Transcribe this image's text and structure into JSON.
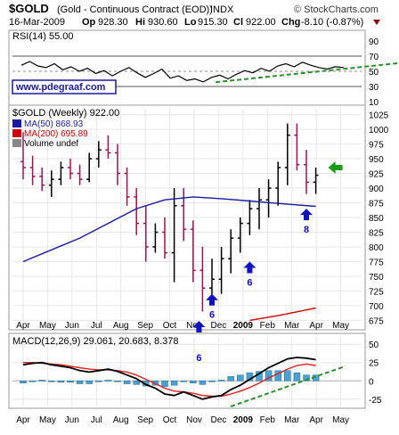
{
  "header": {
    "symbol": "$GOLD",
    "name": "(Gold - Continuous Contract (EOD))",
    "exchange": "INDX",
    "date": "16-Mar-2009",
    "open_label": "Op",
    "open": "928.30",
    "high_label": "Hi",
    "high": "930.60",
    "low_label": "Lo",
    "low": "915.30",
    "close_label": "Cl",
    "close": "922.00",
    "change_label": "Chg",
    "change": "-8.10 (-0.87%)",
    "change_color": "#8b0000",
    "brand": "© StockCharts.com",
    "watermark": "www.pdegraaf.com"
  },
  "chart_data": [
    {
      "type": "line",
      "panel": "rsi",
      "title": "RSI(14) 55.00",
      "series": [
        {
          "name": "RSI(14)",
          "color": "#000000",
          "values": [
            58,
            63,
            57,
            55,
            60,
            52,
            56,
            50,
            54,
            47,
            51,
            44,
            50,
            55,
            48,
            42,
            47,
            53,
            41,
            44,
            38,
            40,
            36,
            42,
            45,
            40,
            46,
            51,
            48,
            54,
            50,
            57,
            60,
            56,
            62,
            58,
            55,
            53,
            56,
            55
          ]
        }
      ],
      "ylim": [
        10,
        90
      ],
      "yticks": [
        10,
        30,
        50,
        70,
        90
      ],
      "overbought": 70,
      "oversold": 30,
      "trendline": {
        "color": "#2e8b2e",
        "style": "dashed",
        "from": [
          24,
          38
        ],
        "to": [
          48,
          60
        ]
      }
    },
    {
      "type": "ohlc",
      "panel": "price",
      "title": "$GOLD (Weekly) 922.00",
      "legend": [
        "$GOLD (Weekly) 922.00",
        "MA(50) 868.93",
        "MA(200) 695.89",
        "Volume undef"
      ],
      "x_labels": [
        "Apr",
        "May",
        "Jun",
        "Jul",
        "Aug",
        "Sep",
        "Oct",
        "Nov",
        "Dec",
        "2009",
        "Feb",
        "Mar",
        "Apr",
        "May"
      ],
      "ylim": [
        665,
        1035
      ],
      "yticks": [
        675,
        700,
        725,
        750,
        775,
        800,
        825,
        850,
        875,
        900,
        925,
        950,
        975,
        1000,
        1025
      ],
      "bars": [
        [
          945,
          995,
          915,
          935
        ],
        [
          935,
          955,
          905,
          920
        ],
        [
          920,
          935,
          895,
          905
        ],
        [
          905,
          930,
          885,
          915
        ],
        [
          915,
          945,
          905,
          935
        ],
        [
          935,
          950,
          915,
          925
        ],
        [
          925,
          940,
          905,
          915
        ],
        [
          915,
          960,
          910,
          950
        ],
        [
          950,
          980,
          935,
          965
        ],
        [
          965,
          990,
          950,
          960
        ],
        [
          960,
          975,
          905,
          925
        ],
        [
          925,
          935,
          870,
          885
        ],
        [
          885,
          900,
          820,
          840
        ],
        [
          840,
          870,
          775,
          800
        ],
        [
          800,
          840,
          790,
          825
        ],
        [
          825,
          850,
          780,
          790
        ],
        [
          790,
          900,
          740,
          870
        ],
        [
          870,
          900,
          810,
          830
        ],
        [
          830,
          845,
          740,
          760
        ],
        [
          760,
          800,
          690,
          730
        ],
        [
          730,
          780,
          705,
          745
        ],
        [
          745,
          800,
          720,
          780
        ],
        [
          780,
          830,
          755,
          815
        ],
        [
          815,
          850,
          790,
          840
        ],
        [
          840,
          880,
          820,
          865
        ],
        [
          865,
          900,
          830,
          880
        ],
        [
          880,
          915,
          850,
          900
        ],
        [
          900,
          945,
          870,
          935
        ],
        [
          935,
          1010,
          905,
          990
        ],
        [
          990,
          1010,
          930,
          940
        ],
        [
          940,
          965,
          890,
          910
        ],
        [
          910,
          935,
          890,
          922
        ]
      ],
      "bar_color_up": "#000000",
      "bar_color_down": "#a01050",
      "ma50": {
        "name": "MA(50) 868.93",
        "color": "#1a1aa0",
        "values": [
          [
            0,
            775
          ],
          [
            3,
            795
          ],
          [
            6,
            815
          ],
          [
            9,
            840
          ],
          [
            12,
            865
          ],
          [
            15,
            880
          ],
          [
            18,
            885
          ],
          [
            21,
            882
          ],
          [
            24,
            878
          ],
          [
            27,
            874
          ],
          [
            31,
            869
          ]
        ]
      },
      "ma200": {
        "name": "MA(200) 695.89",
        "color": "#cc0000",
        "values": [
          [
            24,
            675
          ],
          [
            27,
            683
          ],
          [
            31,
            696
          ]
        ]
      },
      "annotations": [
        {
          "text": "6",
          "bar": 20,
          "price": 720,
          "arrow": "up",
          "color": "#1010c0"
        },
        {
          "text": "6",
          "bar": 24,
          "price": 775,
          "arrow": "up",
          "color": "#1010c0"
        },
        {
          "text": "8",
          "bar": 30,
          "price": 865,
          "arrow": "up",
          "color": "#1010c0"
        },
        {
          "text": "",
          "bar": 32,
          "price": 935,
          "arrow": "left",
          "color": "#1a9a1a"
        }
      ]
    },
    {
      "type": "line",
      "panel": "macd",
      "title": "MACD(12,26,9) 29.061, 20.683, 8.378",
      "series": [
        {
          "name": "MACD(12,26,9) 29.061",
          "color": "#000000",
          "values": [
            22,
            24,
            25,
            22,
            20,
            18,
            14,
            12,
            14,
            16,
            13,
            8,
            3,
            -5,
            -10,
            -18,
            -20,
            -15,
            -20,
            -25,
            -22,
            -20,
            -12,
            -6,
            2,
            10,
            18,
            24,
            30,
            32,
            31,
            29
          ]
        },
        {
          "name": "20.683",
          "color": "#e02020",
          "values": [
            25,
            25,
            24,
            23,
            22,
            20,
            18,
            16,
            15,
            15,
            14,
            12,
            8,
            2,
            -4,
            -10,
            -14,
            -15,
            -17,
            -20,
            -21,
            -21,
            -18,
            -14,
            -9,
            -3,
            4,
            10,
            16,
            21,
            23,
            21
          ]
        },
        {
          "name": "8.378",
          "color": "#4aa0d0",
          "values": [
            -3,
            -1,
            1,
            -1,
            -2,
            -2,
            -4,
            -4,
            -1,
            1,
            -1,
            -4,
            -5,
            -7,
            -6,
            -8,
            -6,
            0,
            -3,
            -5,
            -1,
            1,
            6,
            8,
            11,
            13,
            14,
            14,
            14,
            11,
            8,
            8
          ]
        }
      ],
      "ylim": [
        -35,
        60
      ],
      "yticks": [
        -25,
        0,
        25,
        50
      ],
      "x_labels": [
        "Apr",
        "May",
        "Jun",
        "Jul",
        "Aug",
        "Sep",
        "Oct",
        "Nov",
        "Dec",
        "2009",
        "Feb",
        "Mar",
        "Apr",
        "May"
      ],
      "trendline": {
        "color": "#2e8b2e",
        "style": "dashed",
        "from": [
          22,
          -35
        ],
        "to": [
          36,
          20
        ]
      }
    }
  ],
  "annotation_extra": {
    "text": "6",
    "color": "#1010c0"
  }
}
